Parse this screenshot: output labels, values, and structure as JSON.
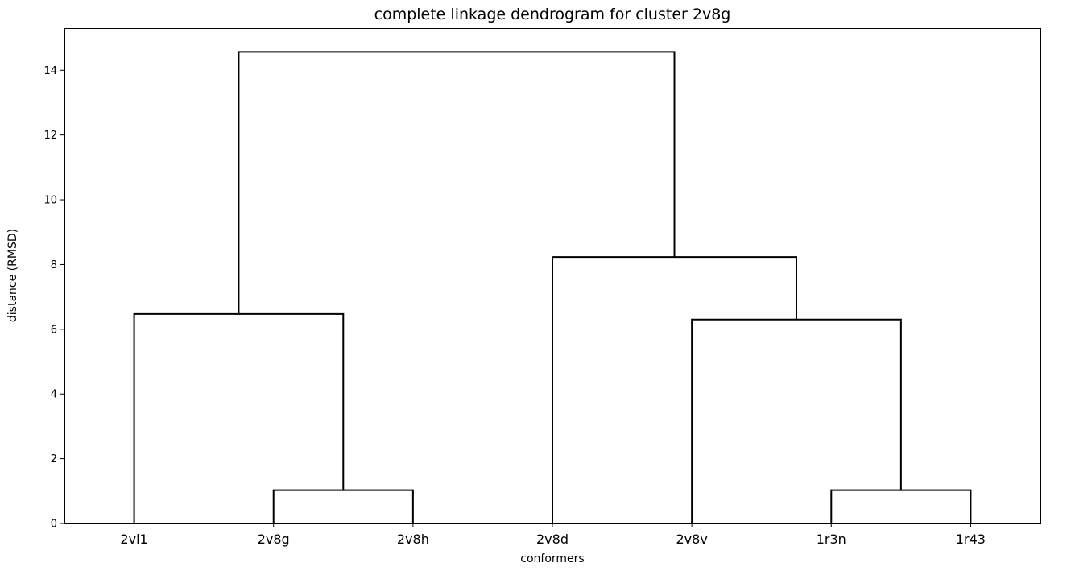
{
  "chart_data": {
    "type": "dendrogram",
    "title": "complete linkage dendrogram for cluster 2v8g",
    "xlabel": "conformers",
    "ylabel": "distance (RMSD)",
    "leaves": [
      "2vl1",
      "2v8g",
      "2v8h",
      "2v8d",
      "2v8v",
      "1r3n",
      "1r43"
    ],
    "yticks": [
      0,
      2,
      4,
      6,
      8,
      10,
      12,
      14
    ],
    "ylim": [
      0,
      15.3
    ],
    "grid": false,
    "merges": [
      {
        "left": "2v8g",
        "right": "2v8h",
        "height": 1.03
      },
      {
        "left": "1r3n",
        "right": "1r43",
        "height": 1.03
      },
      {
        "left": "2vl1",
        "right": "(2v8g, 2v8h)",
        "height": 6.47
      },
      {
        "left": "2v8v",
        "right": "(1r3n, 1r43)",
        "height": 6.3
      },
      {
        "left": "2v8d",
        "right": "(2v8v, (1r3n, 1r43))",
        "height": 8.23
      },
      {
        "left": "(2vl1, (2v8g, 2v8h))",
        "right": "(2v8d, (2v8v, (1r3n, 1r43)))",
        "height": 14.57
      }
    ],
    "line_color": "#000000"
  }
}
